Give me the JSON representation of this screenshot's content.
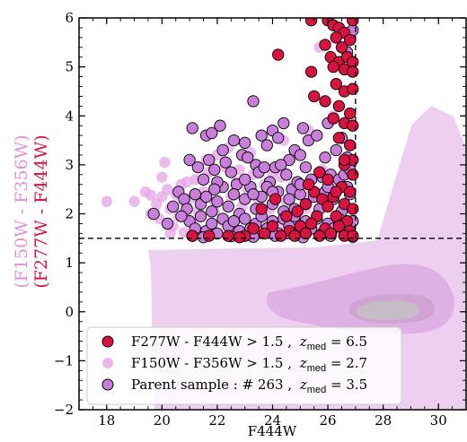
{
  "chart_data": {
    "type": "scatter",
    "xlabel": "F444W",
    "ylabel_parts": [
      {
        "text": "(F150W - F356W)",
        "color": "#e38fe0"
      },
      {
        "text": "(F277W - F444W)",
        "color": "#d8133f"
      }
    ],
    "xlim": [
      17,
      31
    ],
    "ylim": [
      -2,
      6
    ],
    "x_ticks": [
      18,
      20,
      22,
      24,
      26,
      28,
      30
    ],
    "y_ticks": [
      -2,
      -1,
      0,
      1,
      2,
      3,
      4,
      5,
      6
    ],
    "y_minor_step": 0.2,
    "x_minor_step": 0.5,
    "threshold_y": 1.5,
    "threshold_x": 27,
    "colors": {
      "red": "#d8133f",
      "pink": "#e5a3e6",
      "parent": "#c77fd9",
      "density_outer": "#edd0ef",
      "density_mid": "#dfb0e3",
      "density_inner": "#cfa3d2"
    },
    "legend": {
      "placement": "lower-left",
      "entries": [
        {
          "label": "F277W - F444W > 1.5 , z_med = 6.5",
          "text": "F277W - F444W > 1.5 ,",
          "zmed": "6.5",
          "color": "#d8133f",
          "edge": "#000000"
        },
        {
          "label": "F150W - F356W > 1.5 , z_med = 2.7",
          "text": "F150W - F356W > 1.5 ,",
          "zmed": "2.7",
          "color": "#e5a3e6",
          "edge": "none"
        },
        {
          "label": "Parent sample : # 263 , z_med = 3.5",
          "text": "Parent sample : # 263 ,",
          "zmed": "3.5",
          "color": "#c77fd9",
          "edge": "#000000"
        }
      ]
    },
    "series": [
      {
        "name": "F150W - F356W > 1.5 , z_med = 2.7",
        "color": "#e5a3e6",
        "points": [
          [
            18.0,
            2.25
          ],
          [
            19.4,
            2.45
          ],
          [
            19.6,
            2.38
          ],
          [
            19.8,
            2.2
          ],
          [
            20.0,
            2.35
          ],
          [
            20.2,
            2.5
          ],
          [
            20.3,
            2.1
          ],
          [
            20.5,
            2.4
          ],
          [
            20.7,
            2.6
          ],
          [
            20.8,
            2.25
          ],
          [
            21.0,
            2.3
          ],
          [
            21.2,
            2.7
          ],
          [
            21.3,
            2.05
          ],
          [
            21.5,
            2.45
          ],
          [
            21.7,
            2.85
          ],
          [
            21.9,
            2.25
          ],
          [
            22.1,
            2.55
          ],
          [
            22.3,
            2.95
          ],
          [
            22.5,
            2.35
          ],
          [
            22.7,
            2.65
          ],
          [
            22.9,
            2.15
          ],
          [
            23.1,
            2.5
          ],
          [
            23.3,
            2.8
          ],
          [
            23.5,
            2.3
          ],
          [
            23.7,
            2.6
          ],
          [
            23.9,
            2.1
          ],
          [
            24.1,
            2.4
          ],
          [
            24.3,
            2.75
          ],
          [
            24.5,
            2.25
          ],
          [
            24.7,
            2.55
          ],
          [
            19.0,
            2.25
          ],
          [
            19.9,
            1.9
          ],
          [
            20.4,
            1.75
          ],
          [
            20.6,
            1.95
          ],
          [
            21.1,
            1.8
          ],
          [
            21.4,
            1.95
          ],
          [
            21.8,
            1.7
          ],
          [
            22.2,
            1.85
          ],
          [
            22.6,
            1.72
          ],
          [
            23.0,
            1.92
          ],
          [
            23.4,
            1.78
          ],
          [
            23.8,
            1.88
          ],
          [
            24.2,
            1.74
          ],
          [
            24.6,
            1.9
          ],
          [
            25.0,
            1.8
          ],
          [
            25.2,
            2.1
          ],
          [
            25.4,
            2.4
          ],
          [
            25.6,
            2.0
          ],
          [
            20.1,
            3.05
          ],
          [
            20.0,
            2.75
          ],
          [
            21.6,
            3.1
          ],
          [
            22.0,
            3.2
          ],
          [
            22.4,
            3.35
          ],
          [
            23.2,
            3.25
          ],
          [
            24.4,
            3.5
          ],
          [
            24.8,
            3.2
          ],
          [
            25.3,
            3.7
          ],
          [
            25.5,
            4.4
          ],
          [
            25.7,
            5.4
          ],
          [
            26.2,
            4.0
          ],
          [
            19.6,
            2.0
          ],
          [
            20.9,
            2.65
          ],
          [
            21.9,
            2.05
          ],
          [
            22.8,
            2.9
          ],
          [
            23.6,
            2.05
          ],
          [
            24.0,
            2.85
          ],
          [
            20.3,
            1.6
          ],
          [
            20.8,
            1.62
          ],
          [
            21.5,
            1.58
          ],
          [
            22.5,
            1.6
          ],
          [
            23.5,
            1.62
          ],
          [
            24.5,
            1.58
          ],
          [
            25.5,
            1.65
          ],
          [
            26.5,
            1.6
          ],
          [
            26.0,
            2.2
          ],
          [
            26.3,
            2.6
          ],
          [
            25.8,
            2.9
          ],
          [
            26.6,
            3.0
          ]
        ]
      },
      {
        "name": "Parent sample : # 263 , z_med = 3.5",
        "color": "#c77fd9",
        "points": [
          [
            21.1,
            3.75
          ],
          [
            21.6,
            3.6
          ],
          [
            21.8,
            3.65
          ],
          [
            22.1,
            3.8
          ],
          [
            22.2,
            3.3
          ],
          [
            22.6,
            3.5
          ],
          [
            22.9,
            3.2
          ],
          [
            23.0,
            3.45
          ],
          [
            23.3,
            4.3
          ],
          [
            23.4,
            3.0
          ],
          [
            23.6,
            3.6
          ],
          [
            23.8,
            3.4
          ],
          [
            24.0,
            3.7
          ],
          [
            24.2,
            3.55
          ],
          [
            24.4,
            3.85
          ],
          [
            24.6,
            3.1
          ],
          [
            24.8,
            3.3
          ],
          [
            25.0,
            3.2
          ],
          [
            25.1,
            3.75
          ],
          [
            25.3,
            3.5
          ],
          [
            25.6,
            3.6
          ],
          [
            26.0,
            3.85
          ],
          [
            26.7,
            5.3
          ],
          [
            26.9,
            5.75
          ],
          [
            21.0,
            3.1
          ],
          [
            21.3,
            2.95
          ],
          [
            21.5,
            2.7
          ],
          [
            21.7,
            3.1
          ],
          [
            21.9,
            2.9
          ],
          [
            22.3,
            3.05
          ],
          [
            22.5,
            2.85
          ],
          [
            22.7,
            2.6
          ],
          [
            23.1,
            3.15
          ],
          [
            23.5,
            2.85
          ],
          [
            23.7,
            2.95
          ],
          [
            23.9,
            2.65
          ],
          [
            24.1,
            2.95
          ],
          [
            24.3,
            3.0
          ],
          [
            24.5,
            2.8
          ],
          [
            24.7,
            2.5
          ],
          [
            24.9,
            2.65
          ],
          [
            25.2,
            2.95
          ],
          [
            25.4,
            2.7
          ],
          [
            25.8,
            2.75
          ],
          [
            26.1,
            2.8
          ],
          [
            26.4,
            2.7
          ],
          [
            26.6,
            2.8
          ],
          [
            26.8,
            2.9
          ],
          [
            20.6,
            2.45
          ],
          [
            20.8,
            2.3
          ],
          [
            20.9,
            2.1
          ],
          [
            21.2,
            2.4
          ],
          [
            21.4,
            2.2
          ],
          [
            21.6,
            2.35
          ],
          [
            21.8,
            2.05
          ],
          [
            22.0,
            2.25
          ],
          [
            22.2,
            2.55
          ],
          [
            22.4,
            2.15
          ],
          [
            22.6,
            2.4
          ],
          [
            22.8,
            2.0
          ],
          [
            23.0,
            2.3
          ],
          [
            23.2,
            2.55
          ],
          [
            23.4,
            2.1
          ],
          [
            23.6,
            2.35
          ],
          [
            23.8,
            2.55
          ],
          [
            24.0,
            2.2
          ],
          [
            24.2,
            2.45
          ],
          [
            24.4,
            2.05
          ],
          [
            24.6,
            2.3
          ],
          [
            24.8,
            2.1
          ],
          [
            25.0,
            2.4
          ],
          [
            25.2,
            2.2
          ],
          [
            25.5,
            2.35
          ],
          [
            25.7,
            2.1
          ],
          [
            25.9,
            2.45
          ],
          [
            26.2,
            2.3
          ],
          [
            26.5,
            2.05
          ],
          [
            26.8,
            2.4
          ],
          [
            21.0,
            1.85
          ],
          [
            21.2,
            1.7
          ],
          [
            21.4,
            1.95
          ],
          [
            21.6,
            1.65
          ],
          [
            21.8,
            1.8
          ],
          [
            22.0,
            1.6
          ],
          [
            22.2,
            1.9
          ],
          [
            22.4,
            1.75
          ],
          [
            22.6,
            1.85
          ],
          [
            22.8,
            1.65
          ],
          [
            23.0,
            1.9
          ],
          [
            23.2,
            1.7
          ],
          [
            23.4,
            1.8
          ],
          [
            23.6,
            1.95
          ],
          [
            23.8,
            1.7
          ],
          [
            24.0,
            1.85
          ],
          [
            24.2,
            1.6
          ],
          [
            24.4,
            1.9
          ],
          [
            24.6,
            1.75
          ],
          [
            24.8,
            1.95
          ],
          [
            25.0,
            1.65
          ],
          [
            25.2,
            1.85
          ],
          [
            25.4,
            1.7
          ],
          [
            25.6,
            1.9
          ],
          [
            25.8,
            1.6
          ],
          [
            26.0,
            1.8
          ],
          [
            26.2,
            1.7
          ],
          [
            26.4,
            1.9
          ],
          [
            26.6,
            1.65
          ],
          [
            26.9,
            1.85
          ],
          [
            21.1,
            1.55
          ],
          [
            21.5,
            1.52
          ],
          [
            22.5,
            1.54
          ],
          [
            23.3,
            1.53
          ],
          [
            24.1,
            1.55
          ],
          [
            25.1,
            1.52
          ],
          [
            26.1,
            1.55
          ],
          [
            26.9,
            1.53
          ],
          [
            19.7,
            2.0
          ],
          [
            20.2,
            1.8
          ],
          [
            20.4,
            2.15
          ],
          [
            20.7,
            1.95
          ],
          [
            26.3,
            3.3
          ],
          [
            26.5,
            3.55
          ],
          [
            26.7,
            3.15
          ],
          [
            25.9,
            3.15
          ],
          [
            22.0,
            2.65
          ],
          [
            23.0,
            2.7
          ],
          [
            24.0,
            2.45
          ],
          [
            25.0,
            2.6
          ],
          [
            26.0,
            2.55
          ],
          [
            26.7,
            2.55
          ],
          [
            21.9,
            2.5
          ],
          [
            23.3,
            2.4
          ]
        ]
      },
      {
        "name": "F277W - F444W > 1.5 , z_med = 6.5",
        "color": "#d8133f",
        "points": [
          [
            25.4,
            5.95
          ],
          [
            26.0,
            5.95
          ],
          [
            26.2,
            5.85
          ],
          [
            26.4,
            5.8
          ],
          [
            26.6,
            5.7
          ],
          [
            26.9,
            5.95
          ],
          [
            25.9,
            5.45
          ],
          [
            26.3,
            5.6
          ],
          [
            26.5,
            5.4
          ],
          [
            26.8,
            5.55
          ],
          [
            26.1,
            5.2
          ],
          [
            26.4,
            5.1
          ],
          [
            26.7,
            5.2
          ],
          [
            26.9,
            5.1
          ],
          [
            26.2,
            5.0
          ],
          [
            26.6,
            4.95
          ],
          [
            25.4,
            4.9
          ],
          [
            26.9,
            4.9
          ],
          [
            26.3,
            4.65
          ],
          [
            26.6,
            4.5
          ],
          [
            26.9,
            4.55
          ],
          [
            25.5,
            4.4
          ],
          [
            25.9,
            4.3
          ],
          [
            26.4,
            4.2
          ],
          [
            26.8,
            4.05
          ],
          [
            26.2,
            3.95
          ],
          [
            26.6,
            3.85
          ],
          [
            26.9,
            3.8
          ],
          [
            26.4,
            3.55
          ],
          [
            26.8,
            3.4
          ],
          [
            26.9,
            3.1
          ],
          [
            26.6,
            3.0
          ],
          [
            26.9,
            2.8
          ],
          [
            26.5,
            2.55
          ],
          [
            26.8,
            2.45
          ],
          [
            26.2,
            2.35
          ],
          [
            25.8,
            2.3
          ],
          [
            25.5,
            2.45
          ],
          [
            26.0,
            2.15
          ],
          [
            26.6,
            2.2
          ],
          [
            26.9,
            2.1
          ],
          [
            25.2,
            2.2
          ],
          [
            24.9,
            2.05
          ],
          [
            25.6,
            1.95
          ],
          [
            26.3,
            1.95
          ],
          [
            26.7,
            1.85
          ],
          [
            24.5,
            1.95
          ],
          [
            25.0,
            1.75
          ],
          [
            25.4,
            1.8
          ],
          [
            25.9,
            1.7
          ],
          [
            26.4,
            1.75
          ],
          [
            26.8,
            1.65
          ],
          [
            24.0,
            1.75
          ],
          [
            24.6,
            1.65
          ],
          [
            25.2,
            1.6
          ],
          [
            25.7,
            1.55
          ],
          [
            26.1,
            1.6
          ],
          [
            26.6,
            1.55
          ],
          [
            26.9,
            1.55
          ],
          [
            23.3,
            1.7
          ],
          [
            23.7,
            1.6
          ],
          [
            24.3,
            1.55
          ],
          [
            24.8,
            1.55
          ],
          [
            23.0,
            1.55
          ],
          [
            22.4,
            1.55
          ],
          [
            21.7,
            1.55
          ],
          [
            21.1,
            1.55
          ],
          [
            22.8,
            1.52
          ],
          [
            24.1,
            2.3
          ],
          [
            23.6,
            2.1
          ],
          [
            25.3,
            2.6
          ],
          [
            26.0,
            2.7
          ],
          [
            24.2,
            5.25
          ],
          [
            26.6,
            3.1
          ],
          [
            26.3,
            2.45
          ],
          [
            25.7,
            2.85
          ]
        ]
      }
    ]
  }
}
